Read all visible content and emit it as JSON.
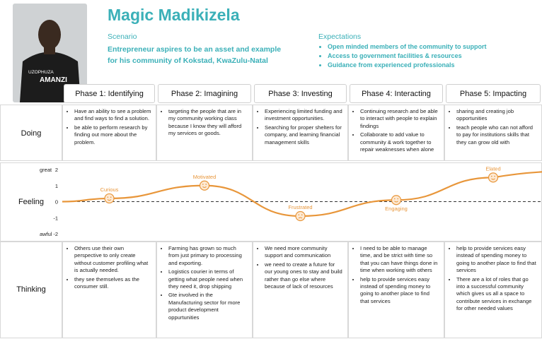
{
  "header": {
    "title": "Magic Madikizela",
    "scenario_label": "Scenario",
    "scenario": [
      "Entrepreneur aspires to be an asset and example",
      "for his community of Kokstad, KwaZulu-Natal"
    ],
    "expectations_label": "Expectations",
    "expectations": [
      "Open minded members of the community to support",
      "Access to government facilities & resources",
      "Guidance from experienced professionals"
    ],
    "photo_text": [
      "UZOPHUZA",
      "AMANZI"
    ]
  },
  "phases": [
    "Phase 1:  Identifying",
    "Phase 2:  Imagining",
    "Phase 3:  Investing",
    "Phase 4:  Interacting",
    "Phase 5:  Impacting"
  ],
  "rows": {
    "doing": "Doing",
    "feeling": "Feeling",
    "thinking": "Thinking"
  },
  "doing": [
    [
      "Have an ability to see a problem and find ways to find a solution.",
      "be able to perform research by finding out more about the problem."
    ],
    [
      "targeting the people that are in my community working class because I know they will afford my services or goods."
    ],
    [
      "Experiencing limited funding and investment opportunities.",
      "Searching for proper shelters for company, and learning financial management skills"
    ],
    [
      "Continuing research and be able to interact with people to explain findings",
      "Collaborate to add value to community & work together to repair weaknesses when alone"
    ],
    [
      "sharing and creating job opportunities",
      "teach people who can not afford to pay for institutions skills that they can grow old with"
    ]
  ],
  "feeling": {
    "top_label": "great",
    "bottom_label": "awful",
    "ylim": [
      -2,
      2
    ],
    "yticks": [
      2,
      1,
      0,
      -1,
      -2
    ],
    "color": "#e8963a",
    "labels": [
      "Curious",
      "Motivated",
      "Frustrated",
      "Engaging",
      "Elated"
    ],
    "values": [
      0.2,
      1.0,
      -0.9,
      0.1,
      1.5
    ]
  },
  "thinking": [
    [
      "Others use their own perspective to only create without customer profiling what is actually needed.",
      "they see themselves as the consumer still."
    ],
    [
      "Farming has grown so much from just primary to processing and exporting.",
      "Logistics courier in terms of getting what people need when they need it, drop shipping",
      "Gte involved in  the Manufacturing sector for more product development oppurtunities"
    ],
    [
      "We need more community support and communication",
      "we need to create a future for our young ones to stay and build rather than go else where because of lack of resources"
    ],
    [
      "I need to be able to manage time, and be strict with time so that you can have things done in time when working with others",
      "help to provide services easy instead of spending money to going to another place to find that services"
    ],
    [
      "help to provide services easy instead of spending money to going to another place to find that services",
      "There are a lot of roles that go into a successful community which gives us all a space to contribute services in exchange for other needed values"
    ]
  ]
}
